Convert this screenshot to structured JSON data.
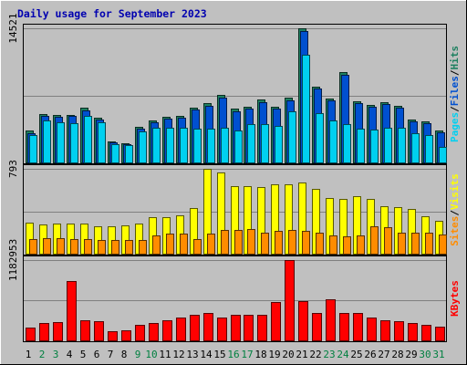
{
  "title": "Daily usage for September 2023",
  "colors": {
    "background": "#c0c0c0",
    "plot_bg": "#c0c0c0",
    "border": "#000000",
    "title": "#0000b0",
    "hits": "#1e8060",
    "files": "#0050d0",
    "pages": "#00d0f0",
    "visits": "#ffff00",
    "sites": "#ff8c00",
    "kbytes": "#ff0000",
    "weekday_label": "#000000",
    "weekend_label": "#008040"
  },
  "chart_data": [
    {
      "type": "bar",
      "panel": "top",
      "ymax_label": "14521",
      "ylim": [
        0,
        14521
      ],
      "legend_labels": [
        "Pages",
        "Files",
        "Hits"
      ],
      "series": [
        {
          "name": "Hits",
          "color_key": "hits",
          "values": [
            3450,
            5200,
            5100,
            5100,
            5900,
            4800,
            2300,
            2100,
            3900,
            4500,
            4900,
            5000,
            5900,
            6400,
            7300,
            5800,
            6000,
            6800,
            6000,
            7000,
            14500,
            8200,
            6900,
            9800,
            6600,
            6200,
            6500,
            6100,
            4600,
            4400,
            3500
          ]
        },
        {
          "name": "Files",
          "color_key": "files",
          "values": [
            3200,
            5000,
            4900,
            5000,
            5600,
            4600,
            2200,
            2000,
            3700,
            4300,
            4700,
            4800,
            5700,
            6100,
            7000,
            5500,
            5800,
            6500,
            5800,
            6700,
            14200,
            8000,
            6700,
            9500,
            6400,
            6000,
            6300,
            5900,
            4400,
            4200,
            3300
          ]
        },
        {
          "name": "Pages",
          "color_key": "pages",
          "values": [
            3000,
            4500,
            4300,
            4200,
            5000,
            4300,
            2000,
            1900,
            3400,
            3800,
            3800,
            3800,
            3700,
            3700,
            3800,
            3500,
            4100,
            4100,
            4000,
            5500,
            11700,
            5300,
            4500,
            4100,
            3700,
            3600,
            3800,
            3800,
            3200,
            3000,
            1700
          ]
        }
      ]
    },
    {
      "type": "bar",
      "panel": "middle",
      "ymax_label": "793",
      "ylim": [
        0,
        793
      ],
      "legend_labels": [
        "Sites",
        "Visits"
      ],
      "series": [
        {
          "name": "Visits",
          "color_key": "visits",
          "values": [
            290,
            275,
            285,
            285,
            280,
            260,
            260,
            265,
            285,
            340,
            345,
            355,
            430,
            793,
            760,
            630,
            630,
            620,
            650,
            650,
            665,
            605,
            520,
            515,
            540,
            515,
            445,
            435,
            420,
            350,
            305
          ]
        },
        {
          "name": "Sites",
          "color_key": "sites",
          "values": [
            135,
            145,
            145,
            140,
            140,
            130,
            130,
            130,
            130,
            170,
            185,
            185,
            135,
            190,
            225,
            220,
            230,
            195,
            215,
            220,
            215,
            200,
            170,
            160,
            170,
            255,
            250,
            200,
            195,
            200,
            180
          ]
        }
      ]
    },
    {
      "type": "bar",
      "panel": "bottom",
      "ymax_label": "1182953",
      "ylim": [
        0,
        1182953
      ],
      "legend_labels": [
        "KBytes"
      ],
      "series": [
        {
          "name": "KBytes",
          "color_key": "kbytes",
          "values": [
            190000,
            250000,
            265000,
            880000,
            300000,
            285000,
            140000,
            150000,
            225000,
            250000,
            300000,
            330000,
            375000,
            400000,
            330000,
            380000,
            370000,
            380000,
            560000,
            1182953,
            580000,
            410000,
            600000,
            400000,
            400000,
            330000,
            300000,
            280000,
            250000,
            235000,
            200000
          ]
        }
      ]
    }
  ],
  "x_labels": [
    "1",
    "2",
    "3",
    "4",
    "5",
    "6",
    "7",
    "8",
    "9",
    "10",
    "11",
    "12",
    "13",
    "14",
    "15",
    "16",
    "17",
    "18",
    "19",
    "20",
    "21",
    "22",
    "23",
    "24",
    "25",
    "26",
    "27",
    "28",
    "29",
    "30",
    "31"
  ],
  "weekend_days": [
    2,
    3,
    9,
    10,
    16,
    17,
    23,
    24,
    30,
    31
  ]
}
